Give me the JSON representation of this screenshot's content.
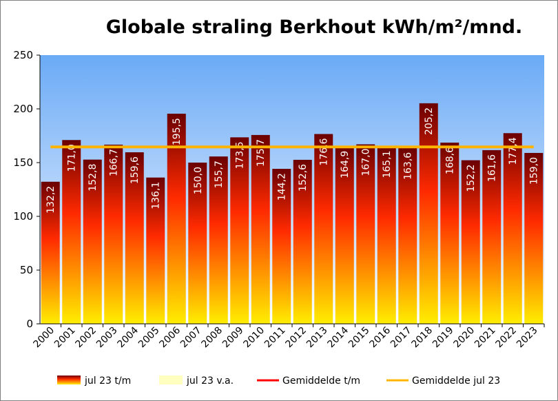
{
  "chart_data": {
    "type": "bar",
    "title": "Globale straling Berkhout kWh/m²/mnd.",
    "categories": [
      "2000",
      "2001",
      "2002",
      "2003",
      "2004",
      "2005",
      "2006",
      "2007",
      "2008",
      "2009",
      "2010",
      "2011",
      "2012",
      "2013",
      "2014",
      "2015",
      "2016",
      "2017",
      "2018",
      "2019",
      "2020",
      "2021",
      "2022",
      "2023"
    ],
    "series": [
      {
        "name": "jul 23 t/m",
        "values": [
          132.2,
          171.0,
          152.8,
          166.7,
          159.6,
          136.1,
          195.5,
          150.0,
          155.7,
          173.5,
          175.7,
          144.2,
          152.6,
          176.6,
          164.9,
          167.0,
          165.1,
          163.6,
          205.2,
          168.6,
          152.2,
          161.6,
          177.4,
          159.0
        ],
        "value_labels": [
          "132,2",
          "171,0",
          "152,8",
          "166,7",
          "159,6",
          "136,1",
          "195,5",
          "150,0",
          "155,7",
          "173,5",
          "175,7",
          "144,2",
          "152,6",
          "176,6",
          "164,9",
          "167,0",
          "165,1",
          "163,6",
          "205,2",
          "168,6",
          "152,2",
          "161,6",
          "177,4",
          "159,0"
        ],
        "color_top": "#6b0000",
        "color_mid": "#ff2a00",
        "color_bottom": "#ffee00"
      }
    ],
    "average_line": {
      "name": "Gemiddelde jul 23",
      "value": 164.6,
      "color": "#ffb400"
    },
    "ylim": [
      0,
      250
    ],
    "yticks": [
      0,
      50,
      100,
      150,
      200,
      250
    ],
    "ytick_labels": [
      "0",
      "50",
      "100",
      "150",
      "200",
      "250"
    ],
    "grid": false,
    "legend_position": "bottom",
    "legend": [
      {
        "label": "jul 23 t/m",
        "kind": "gradient-box"
      },
      {
        "label": "jul 23 v.a.",
        "kind": "pale-box",
        "color": "#ffffc0"
      },
      {
        "label": "Gemiddelde t/m",
        "kind": "line",
        "color": "#ff0000"
      },
      {
        "label": "Gemiddelde jul 23",
        "kind": "line",
        "color": "#ffb400"
      }
    ],
    "background_colors": {
      "plot_top": "#6aaaf6",
      "plot_bottom": "#ffffff"
    }
  }
}
